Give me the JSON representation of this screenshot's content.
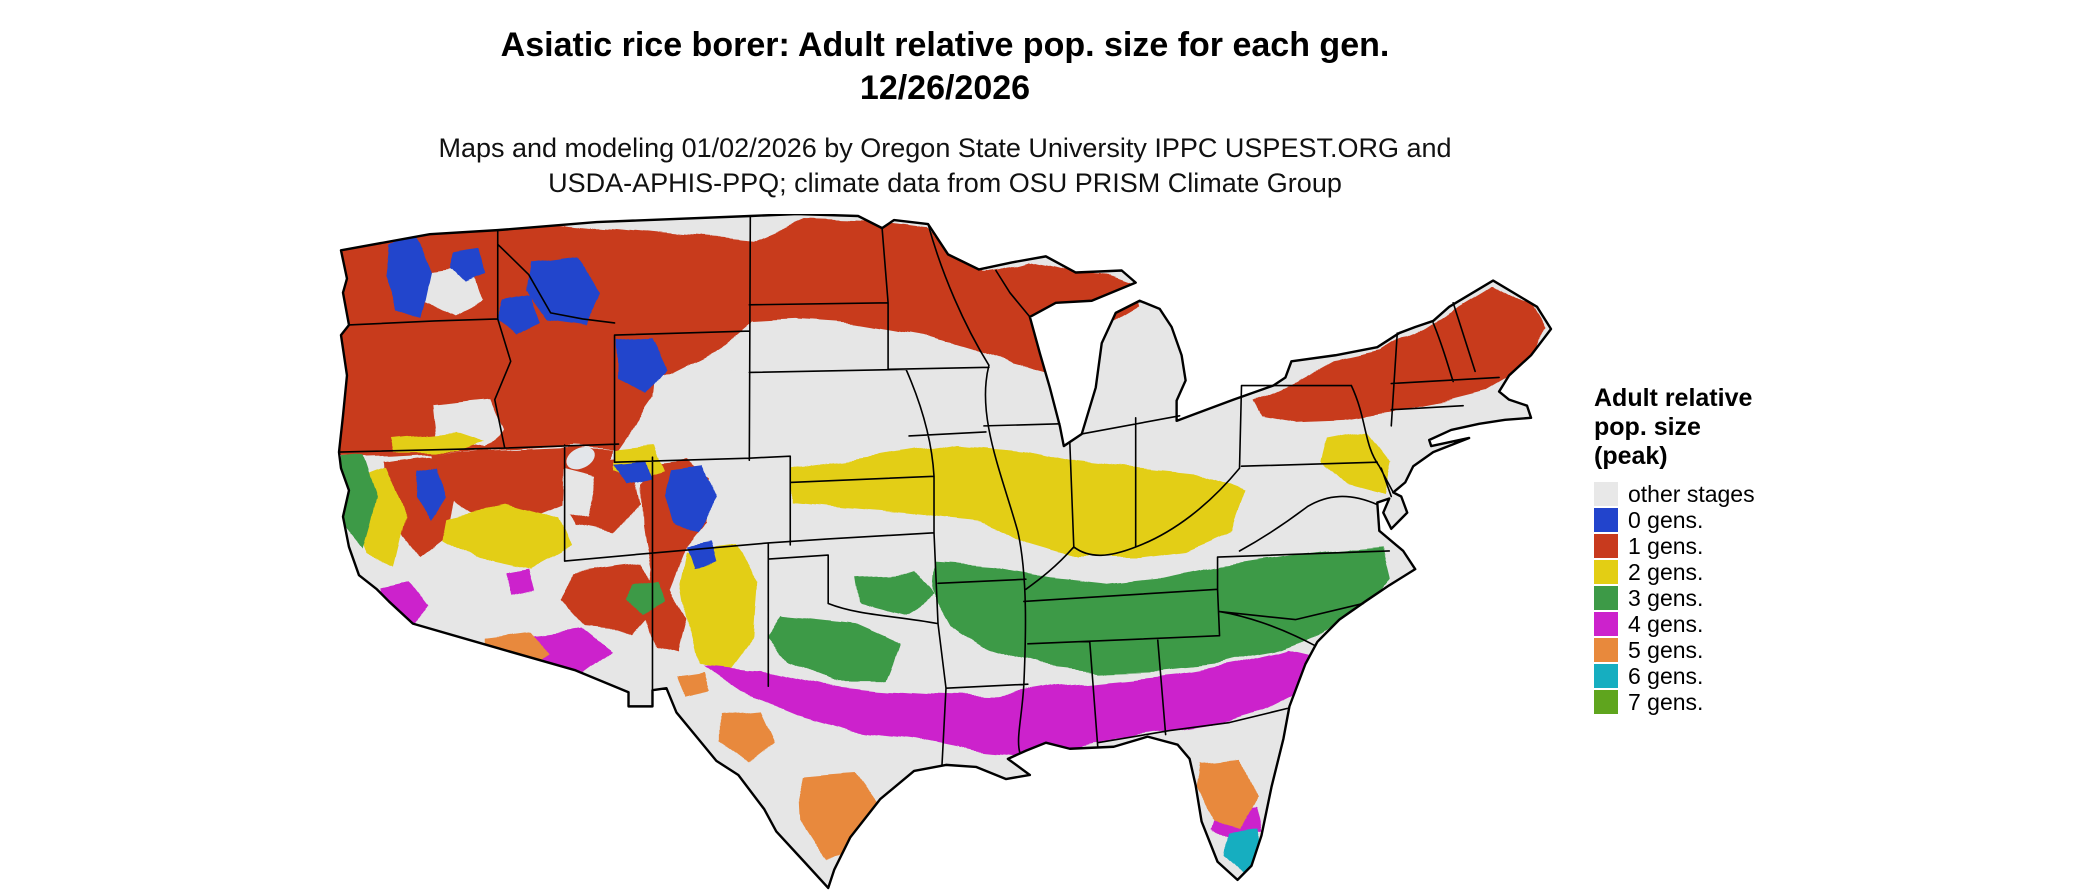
{
  "header": {
    "title_line1": "Asiatic rice borer: Adult relative pop. size for each gen.",
    "title_line2": "12/26/2026",
    "subtitle_line1": "Maps and modeling 01/02/2026 by Oregon State University IPPC USPEST.ORG and",
    "subtitle_line2": "USDA-APHIS-PPQ; climate data from OSU PRISM Climate Group"
  },
  "legend": {
    "title_lines": [
      "Adult relative",
      "pop. size",
      "(peak)"
    ],
    "items": [
      {
        "label": "other stages",
        "color": "#E8E8E8"
      },
      {
        "label": "0 gens.",
        "color": "#2244CC"
      },
      {
        "label": "1 gens.",
        "color": "#C83A1E"
      },
      {
        "label": "2 gens.",
        "color": "#E3CE14"
      },
      {
        "label": "3 gens.",
        "color": "#3D9A47"
      },
      {
        "label": "4 gens.",
        "color": "#CC22CC"
      },
      {
        "label": "5 gens.",
        "color": "#E8893C"
      },
      {
        "label": "6 gens.",
        "color": "#16AEC0"
      },
      {
        "label": "7 gens.",
        "color": "#5FA51E"
      }
    ]
  },
  "map": {
    "name": "Continental United States — Asiatic rice borer adult relative population size by generation",
    "base_color": "#E6E6E6",
    "bands": [
      {
        "gens": 0,
        "areas": "Highest mountain areas: Washington Cascades, central Idaho and western Montana ranges, Yellowstone and Wind River ranges, Colorado Rockies, Sierra Nevada crest"
      },
      {
        "gens": 1,
        "areas": "Northern tier: Pacific Northwest, interior mountain West, Montana, North Dakota, upper Midwest and Great Lakes, upstate New York and northern New England"
      },
      {
        "gens": 2,
        "areas": "Central band: Kansas and Nebraska through Missouri, Illinois, Indiana and Ohio; Great Basin valleys, California Central Valley margin, central New Mexico, southeast Pennsylvania / New Jersey / Maryland"
      },
      {
        "gens": 3,
        "areas": "Southern mid band: Oklahoma and Ozarks, Arkansas, Tennessee, northern Mississippi / Alabama / Georgia, the Carolinas and southern Virginia, California coast"
      },
      {
        "gens": 4,
        "areas": "Gulf band: central Texas through Louisiana, southern Mississippi / Alabama, southern Georgia, northern Florida; southern California coast and southern Arizona pockets"
      },
      {
        "gens": 5,
        "areas": "South Texas and lower Rio Grande, central Florida, Yuma / southwest Arizona, Big Bend pockets"
      },
      {
        "gens": 6,
        "areas": "Southern tip of Florida"
      },
      {
        "gens": 7,
        "areas": "Not visibly present on map (legend entry only)"
      }
    ]
  }
}
